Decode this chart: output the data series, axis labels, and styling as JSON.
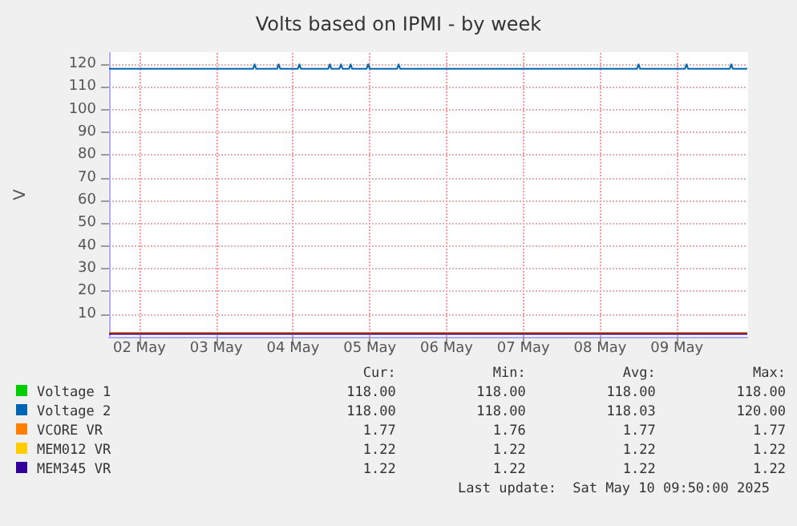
{
  "chart_data": {
    "type": "line",
    "title": "Volts based on IPMI - by week",
    "ylabel": "V",
    "xlim": [
      "2025-05-02T02:30",
      "2025-05-10T10:00"
    ],
    "xticks": [
      {
        "value": "2025-05-02T12:00",
        "label": "02 May"
      },
      {
        "value": "2025-05-03T12:00",
        "label": "03 May"
      },
      {
        "value": "2025-05-04T12:00",
        "label": "04 May"
      },
      {
        "value": "2025-05-05T12:00",
        "label": "05 May"
      },
      {
        "value": "2025-05-06T12:00",
        "label": "06 May"
      },
      {
        "value": "2025-05-07T12:00",
        "label": "07 May"
      },
      {
        "value": "2025-05-08T12:00",
        "label": "08 May"
      },
      {
        "value": "2025-05-09T12:00",
        "label": "09 May"
      }
    ],
    "ylim": [
      0,
      125
    ],
    "yticks": [
      10,
      20,
      30,
      40,
      50,
      60,
      70,
      80,
      90,
      100,
      110,
      120
    ],
    "grid": true,
    "legend": "bottom",
    "marker": "none",
    "line_style": "solid",
    "series": [
      {
        "name": "Voltage 1",
        "color": "#00cc00"
      },
      {
        "name": "Voltage 2",
        "color": "#0066b3",
        "x": [
          "2025-05-02T02:30",
          "2025-05-03T23:30",
          "2025-05-04T00:00",
          "2025-05-04T00:30",
          "2025-05-04T07:00",
          "2025-05-04T07:30",
          "2025-05-04T08:00",
          "2025-05-04T13:30",
          "2025-05-04T14:00",
          "2025-05-04T14:30",
          "2025-05-04T23:00",
          "2025-05-04T23:30",
          "2025-05-05T00:00",
          "2025-05-05T02:30",
          "2025-05-05T03:00",
          "2025-05-05T03:30",
          "2025-05-05T05:30",
          "2025-05-05T06:00",
          "2025-05-05T06:30",
          "2025-05-05T11:00",
          "2025-05-05T11:30",
          "2025-05-05T12:00",
          "2025-05-05T20:30",
          "2025-05-05T21:00",
          "2025-05-05T21:30",
          "2025-05-08T23:30",
          "2025-05-09T00:00",
          "2025-05-09T00:30",
          "2025-05-09T14:30",
          "2025-05-09T15:00",
          "2025-05-09T15:30",
          "2025-05-10T04:30",
          "2025-05-10T05:00",
          "2025-05-10T05:30",
          "2025-05-10T10:00"
        ],
        "values": [
          118,
          118,
          120,
          118,
          118,
          120,
          118,
          118,
          120,
          118,
          118,
          120,
          118,
          118,
          120,
          118,
          118,
          120,
          118,
          118,
          120,
          118,
          118,
          120,
          118,
          118,
          120,
          118,
          118,
          120,
          118,
          118,
          120,
          118,
          118
        ]
      },
      {
        "name": "VCORE VR",
        "color": "#ff8000",
        "x": [
          "2025-05-02T02:30",
          "2025-05-10T10:00"
        ],
        "values": [
          1.77,
          1.77
        ]
      },
      {
        "name": "MEM012 VR",
        "color": "#ffcc00"
      },
      {
        "name": "MEM345 VR",
        "color": "#330099",
        "x": [
          "2025-05-02T02:30",
          "2025-05-10T10:00"
        ],
        "values": [
          1.22,
          1.22
        ]
      }
    ],
    "annotations": [
      "Cur:",
      "Min:",
      "Avg:",
      "Max:",
      "118.00",
      "118.00",
      "118.00",
      "118.00",
      "118.00",
      "118.00",
      "118.03",
      "120.00",
      "1.77",
      "1.76",
      "1.77",
      "1.77",
      "1.22",
      "1.22",
      "1.22",
      "1.22",
      "1.22",
      "1.22",
      "1.22",
      "1.22",
      "Last update:  Sat May 10 09:50:00 2025"
    ]
  }
}
